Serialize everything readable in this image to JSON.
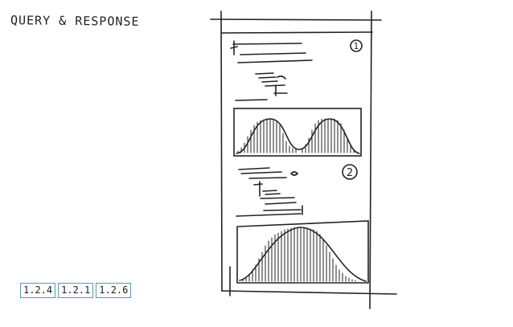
{
  "title": "QUERY & RESPONSE",
  "panels": [
    {
      "number": "1"
    },
    {
      "number": "2"
    }
  ],
  "tags": [
    "1.2.4",
    "1.2.1",
    "1.2.6"
  ],
  "colors": {
    "ink": "#222222",
    "tag_border": "#3aa6c7"
  }
}
